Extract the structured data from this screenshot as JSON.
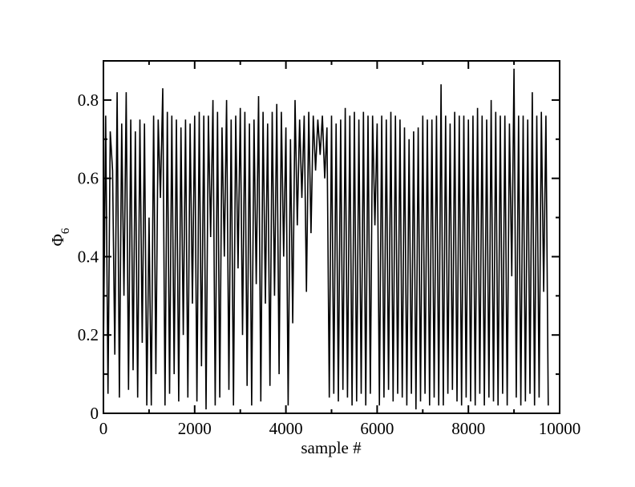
{
  "chart_data": {
    "type": "line",
    "title": "",
    "xlabel": "sample #",
    "ylabel": {
      "main": "Φ",
      "subscript": "6"
    },
    "xlim": [
      0,
      10000
    ],
    "ylim": [
      0,
      0.9
    ],
    "x_ticks": [
      0,
      2000,
      4000,
      6000,
      8000,
      10000
    ],
    "x_tick_labels": [
      "0",
      "2000",
      "4000",
      "6000",
      "8000",
      "10000"
    ],
    "y_ticks": [
      0,
      0.2,
      0.4,
      0.6,
      0.8
    ],
    "y_tick_labels": [
      "0",
      "0.2",
      "0.4",
      "0.6",
      "0.8"
    ],
    "grid": false,
    "legend": "none",
    "line_color": "#000000",
    "series": [
      {
        "x_start": 0,
        "x_step": 50,
        "values": [
          0.15,
          0.76,
          0.05,
          0.72,
          0.62,
          0.15,
          0.82,
          0.04,
          0.74,
          0.3,
          0.82,
          0.06,
          0.75,
          0.11,
          0.72,
          0.04,
          0.75,
          0.18,
          0.74,
          0.02,
          0.5,
          0.02,
          0.76,
          0.1,
          0.75,
          0.55,
          0.83,
          0.02,
          0.77,
          0.05,
          0.76,
          0.1,
          0.75,
          0.03,
          0.73,
          0.2,
          0.75,
          0.04,
          0.74,
          0.28,
          0.76,
          0.03,
          0.77,
          0.12,
          0.76,
          0.01,
          0.76,
          0.45,
          0.8,
          0.02,
          0.77,
          0.04,
          0.73,
          0.4,
          0.8,
          0.06,
          0.75,
          0.02,
          0.76,
          0.37,
          0.78,
          0.2,
          0.77,
          0.07,
          0.74,
          0.02,
          0.75,
          0.33,
          0.81,
          0.03,
          0.77,
          0.28,
          0.74,
          0.07,
          0.77,
          0.3,
          0.79,
          0.1,
          0.77,
          0.4,
          0.73,
          0.02,
          0.7,
          0.23,
          0.8,
          0.48,
          0.75,
          0.55,
          0.76,
          0.31,
          0.77,
          0.46,
          0.76,
          0.62,
          0.75,
          0.66,
          0.76,
          0.6,
          0.73,
          0.04,
          0.76,
          0.05,
          0.74,
          0.03,
          0.75,
          0.06,
          0.78,
          0.04,
          0.76,
          0.02,
          0.77,
          0.03,
          0.75,
          0.05,
          0.77,
          0.02,
          0.76,
          0.05,
          0.76,
          0.48,
          0.74,
          0.02,
          0.76,
          0.04,
          0.75,
          0.06,
          0.77,
          0.03,
          0.76,
          0.05,
          0.75,
          0.04,
          0.73,
          0.02,
          0.7,
          0.05,
          0.72,
          0.01,
          0.73,
          0.03,
          0.76,
          0.05,
          0.75,
          0.02,
          0.75,
          0.04,
          0.76,
          0.02,
          0.84,
          0.02,
          0.76,
          0.05,
          0.74,
          0.06,
          0.77,
          0.03,
          0.76,
          0.02,
          0.76,
          0.04,
          0.75,
          0.03,
          0.76,
          0.02,
          0.78,
          0.05,
          0.76,
          0.02,
          0.75,
          0.04,
          0.8,
          0.03,
          0.77,
          0.02,
          0.76,
          0.05,
          0.76,
          0.02,
          0.74,
          0.35,
          0.88,
          0.04,
          0.76,
          0.02,
          0.76,
          0.03,
          0.75,
          0.05,
          0.82,
          0.02,
          0.76,
          0.04,
          0.77,
          0.31,
          0.76,
          0.02
        ]
      }
    ]
  }
}
